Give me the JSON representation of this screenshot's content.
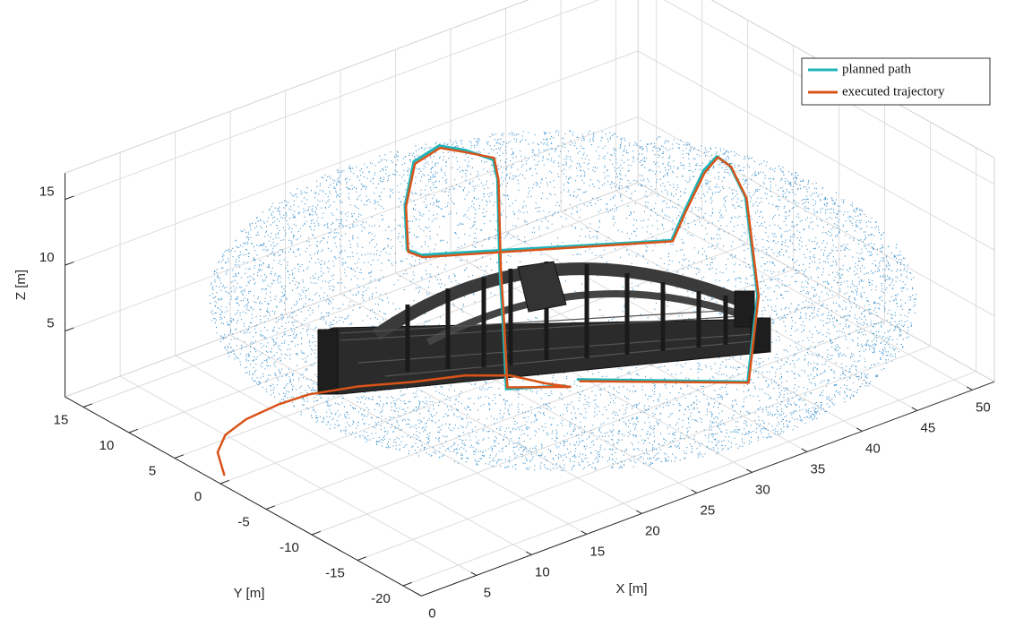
{
  "chart_data": {
    "type": "line3d",
    "xlabel": "X [m]",
    "ylabel": "Y [m]",
    "zlabel": "Z [m]",
    "xlim": [
      0,
      52
    ],
    "ylim": [
      -22,
      17
    ],
    "zlim": [
      0,
      17
    ],
    "xticks": [
      0,
      5,
      10,
      15,
      20,
      25,
      30,
      35,
      40,
      45,
      50
    ],
    "yticks": [
      -20,
      -15,
      -10,
      -5,
      0,
      5,
      10,
      15
    ],
    "zticks": [
      5,
      10,
      15
    ],
    "grid": true,
    "legend": "upper right",
    "series": [
      {
        "name": "planned path",
        "color": "#1fb5b8",
        "x": [
          28.3,
          43.7,
          44.6,
          43.5,
          42.1,
          40.9,
          39.7,
          38.0,
          36.8,
          14.1,
          12.8,
          12.6,
          13.4,
          15.7,
          18.1,
          20.6,
          21.0,
          21.2,
          21.5,
          21.8,
          27.1
        ],
        "y": [
          -5,
          -5,
          -5,
          -5,
          -5,
          -5,
          -5,
          -5,
          -5,
          -5,
          -5,
          -5,
          -5,
          -5,
          -5,
          -5,
          -5,
          -5,
          -5,
          -5,
          -5
        ],
        "z": [
          1.0,
          -4.0,
          2.3,
          10.1,
          12.9,
          14.0,
          13.3,
          10.8,
          8.9,
          14.9,
          15.7,
          19.1,
          22.2,
          22.7,
          21.6,
          20.1,
          18.5,
          11.6,
          7.4,
          2.3,
          0.9
        ]
      },
      {
        "name": "executed trajectory",
        "color": "#d95319",
        "x": [
          -3.8,
          -4.4,
          -3.7,
          -1.8,
          1.1,
          3.9,
          8.4,
          13.3,
          18.1,
          22.2,
          25.4,
          27.6,
          21.9,
          21.6,
          21.3,
          21.1,
          20.7,
          18.2,
          15.8,
          13.5,
          12.7,
          12.9,
          14.2,
          36.9,
          38.1,
          39.8,
          41.0,
          42.2,
          43.6,
          44.7,
          43.8,
          28.5
        ],
        "y": [
          -5,
          -5,
          -5,
          -5,
          -5,
          -5,
          -5,
          -5,
          -5,
          -5,
          -5,
          -5,
          -5,
          -5,
          -5,
          -5,
          -5,
          -5,
          -5,
          -5,
          -5,
          -5,
          -5,
          -5,
          -5,
          -5,
          -5,
          -5,
          -5,
          -5,
          -5,
          -5
        ],
        "z": [
          3.8,
          5.7,
          6.8,
          7.4,
          7.6,
          7.5,
          6.7,
          5.5,
          4.5,
          3.2,
          1.6,
          0.65,
          2.4,
          7.5,
          11.7,
          18.4,
          20.2,
          21.4,
          22.5,
          22.0,
          19.0,
          15.5,
          14.7,
          8.8,
          10.7,
          13.1,
          13.9,
          12.8,
          10.0,
          2.2,
          -4.1,
          0.8
        ]
      }
    ]
  }
}
